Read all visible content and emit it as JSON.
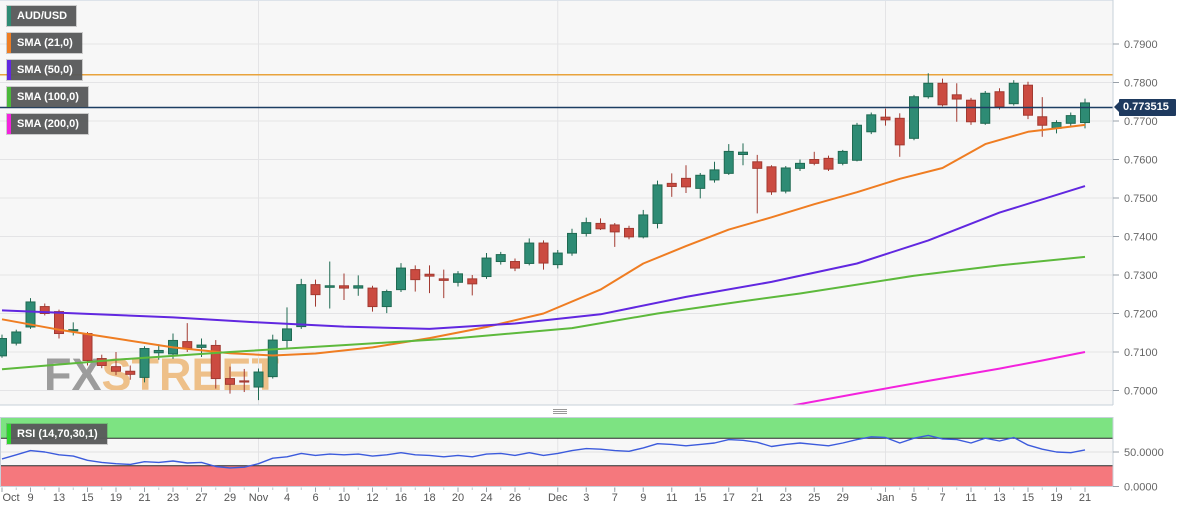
{
  "instrument": "AUD/USD",
  "legend": {
    "items": [
      {
        "label": "AUD/USD",
        "color": "#2e8b74"
      },
      {
        "label": "SMA (21,0)",
        "color": "#ef7d22"
      },
      {
        "label": "SMA (50,0)",
        "color": "#6127e0"
      },
      {
        "label": "SMA (100,0)",
        "color": "#4bb93a"
      },
      {
        "label": "SMA (200,0)",
        "color": "#f322dd"
      }
    ]
  },
  "rsi_panel": {
    "label": "RSI (14,70,30,1)",
    "chip_color": "#2fd32f",
    "axis_ticks": [
      "50.0000",
      "0.0000"
    ],
    "overbought": 70,
    "oversold": 30,
    "upper_band_color": "#7de382",
    "lower_band_color": "#f5787d",
    "line_color": "#3c5bdc"
  },
  "watermark": {
    "part1": "FX",
    "part2": "STREET",
    "color1": "#9c9c9c",
    "color2": "#eec089"
  },
  "price_axis": {
    "labels": [
      "0.7900",
      "0.7800",
      "0.7700",
      "0.7600",
      "0.7500",
      "0.7400",
      "0.7300",
      "0.7200",
      "0.7100",
      "0.7000"
    ],
    "values": [
      0.79,
      0.78,
      0.77,
      0.76,
      0.75,
      0.74,
      0.73,
      0.72,
      0.71,
      0.7
    ]
  },
  "current_price": {
    "label": "0.773515",
    "value": 0.773515,
    "badge_bg": "#1e3a5f",
    "line_color": "#1d3e63"
  },
  "level_line": {
    "value": 0.782,
    "color": "#e8a33c"
  },
  "chart_data": {
    "type": "candlestick",
    "title": "AUD/USD daily candlestick chart with SMA (21/50/100/200) overlays and RSI (14,70,30,1) sub-panel",
    "up_color": "#2e8b74",
    "up_stroke": "#1f6a52",
    "down_color": "#cb4b41",
    "down_stroke": "#a23a31",
    "ylim_main": [
      0.6962,
      0.8014
    ],
    "rsi_ylim": [
      0,
      100
    ],
    "dates": [
      "Oct 7",
      "Oct 8",
      "Oct 9",
      "Oct 12",
      "Oct 13",
      "Oct 14",
      "Oct 15",
      "Oct 16",
      "Oct 19",
      "Oct 20",
      "Oct 21",
      "Oct 22",
      "Oct 23",
      "Oct 26",
      "Oct 27",
      "Oct 28",
      "Oct 29",
      "Oct 30",
      "Nov 2",
      "Nov 3",
      "Nov 4",
      "Nov 5",
      "Nov 6",
      "Nov 9",
      "Nov 10",
      "Nov 11",
      "Nov 12",
      "Nov 13",
      "Nov 16",
      "Nov 17",
      "Nov 18",
      "Nov 19",
      "Nov 20",
      "Nov 23",
      "Nov 24",
      "Nov 25",
      "Nov 26",
      "Nov 27",
      "Nov 30",
      "Dec 1",
      "Dec 2",
      "Dec 3",
      "Dec 4",
      "Dec 7",
      "Dec 8",
      "Dec 9",
      "Dec 10",
      "Dec 11",
      "Dec 14",
      "Dec 15",
      "Dec 16",
      "Dec 17",
      "Dec 18",
      "Dec 21",
      "Dec 22",
      "Dec 23",
      "Dec 24",
      "Dec 25",
      "Dec 28",
      "Dec 29",
      "Dec 30",
      "Dec 31",
      "Jan 1",
      "Jan 4",
      "Jan 5",
      "Jan 6",
      "Jan 7",
      "Jan 8",
      "Jan 11",
      "Jan 12",
      "Jan 13",
      "Jan 14",
      "Jan 15",
      "Jan 18",
      "Jan 19",
      "Jan 20",
      "Jan 21"
    ],
    "ohlc": [
      [
        0.709,
        0.7145,
        0.7085,
        0.7135
      ],
      [
        0.7123,
        0.7158,
        0.7117,
        0.7152
      ],
      [
        0.7165,
        0.724,
        0.716,
        0.723
      ],
      [
        0.7218,
        0.7226,
        0.7195,
        0.72
      ],
      [
        0.7205,
        0.721,
        0.7135,
        0.7148
      ],
      [
        0.7155,
        0.7177,
        0.7143,
        0.7158
      ],
      [
        0.7148,
        0.7152,
        0.7065,
        0.7078
      ],
      [
        0.7083,
        0.7093,
        0.7058,
        0.7065
      ],
      [
        0.7062,
        0.71,
        0.704,
        0.705
      ],
      [
        0.705,
        0.7065,
        0.7028,
        0.7042
      ],
      [
        0.7034,
        0.7115,
        0.7021,
        0.7109
      ],
      [
        0.7098,
        0.712,
        0.708,
        0.7104
      ],
      [
        0.7095,
        0.7148,
        0.7082,
        0.713
      ],
      [
        0.7127,
        0.7175,
        0.71,
        0.711
      ],
      [
        0.7112,
        0.7135,
        0.7087,
        0.7118
      ],
      [
        0.7117,
        0.7131,
        0.7005,
        0.7031
      ],
      [
        0.7031,
        0.7062,
        0.6992,
        0.7016
      ],
      [
        0.7025,
        0.7056,
        0.6996,
        0.7022
      ],
      [
        0.7009,
        0.7057,
        0.6975,
        0.7048
      ],
      [
        0.7036,
        0.7145,
        0.7031,
        0.7131
      ],
      [
        0.713,
        0.7216,
        0.7108,
        0.716
      ],
      [
        0.7166,
        0.729,
        0.716,
        0.7275
      ],
      [
        0.7275,
        0.7288,
        0.7218,
        0.7249
      ],
      [
        0.7268,
        0.7335,
        0.7213,
        0.7272
      ],
      [
        0.7272,
        0.7304,
        0.7235,
        0.7266
      ],
      [
        0.7266,
        0.7299,
        0.7246,
        0.7272
      ],
      [
        0.7266,
        0.7272,
        0.7205,
        0.7218
      ],
      [
        0.7218,
        0.7262,
        0.7201,
        0.7257
      ],
      [
        0.7262,
        0.7331,
        0.7256,
        0.7318
      ],
      [
        0.7314,
        0.7325,
        0.7257,
        0.7288
      ],
      [
        0.7302,
        0.7325,
        0.7253,
        0.7297
      ],
      [
        0.729,
        0.7314,
        0.724,
        0.7286
      ],
      [
        0.7281,
        0.731,
        0.727,
        0.7303
      ],
      [
        0.729,
        0.73,
        0.7247,
        0.7277
      ],
      [
        0.7296,
        0.7357,
        0.729,
        0.7344
      ],
      [
        0.7335,
        0.736,
        0.7327,
        0.7353
      ],
      [
        0.7335,
        0.7343,
        0.731,
        0.7318
      ],
      [
        0.733,
        0.7395,
        0.7325,
        0.7383
      ],
      [
        0.7383,
        0.739,
        0.7314,
        0.7331
      ],
      [
        0.7327,
        0.7365,
        0.7317,
        0.7357
      ],
      [
        0.7357,
        0.742,
        0.735,
        0.7408
      ],
      [
        0.7408,
        0.7449,
        0.74,
        0.7436
      ],
      [
        0.7434,
        0.7447,
        0.7417,
        0.742
      ],
      [
        0.743,
        0.7435,
        0.7373,
        0.7412
      ],
      [
        0.7421,
        0.7428,
        0.7393,
        0.7399
      ],
      [
        0.7399,
        0.7469,
        0.7395,
        0.7456
      ],
      [
        0.7434,
        0.7545,
        0.7421,
        0.7534
      ],
      [
        0.7538,
        0.7564,
        0.7503,
        0.753
      ],
      [
        0.7551,
        0.7585,
        0.7513,
        0.7529
      ],
      [
        0.7525,
        0.7565,
        0.7499,
        0.7559
      ],
      [
        0.7547,
        0.7594,
        0.754,
        0.7573
      ],
      [
        0.7564,
        0.764,
        0.756,
        0.7621
      ],
      [
        0.7613,
        0.7642,
        0.7585,
        0.7619
      ],
      [
        0.7594,
        0.7612,
        0.746,
        0.7577
      ],
      [
        0.7581,
        0.7585,
        0.7508,
        0.7516
      ],
      [
        0.7518,
        0.7583,
        0.7512,
        0.7578
      ],
      [
        0.7577,
        0.76,
        0.757,
        0.759
      ],
      [
        0.76,
        0.762,
        0.7585,
        0.759
      ],
      [
        0.7603,
        0.761,
        0.757,
        0.7575
      ],
      [
        0.759,
        0.7625,
        0.7585,
        0.7621
      ],
      [
        0.7598,
        0.7695,
        0.7595,
        0.7689
      ],
      [
        0.7672,
        0.7722,
        0.7666,
        0.7716
      ],
      [
        0.771,
        0.7732,
        0.7688,
        0.7703
      ],
      [
        0.7707,
        0.772,
        0.7607,
        0.7638
      ],
      [
        0.7655,
        0.7768,
        0.765,
        0.7763
      ],
      [
        0.7763,
        0.7824,
        0.7758,
        0.7798
      ],
      [
        0.7798,
        0.781,
        0.7738,
        0.7742
      ],
      [
        0.7768,
        0.7798,
        0.7698,
        0.7757
      ],
      [
        0.7754,
        0.776,
        0.769,
        0.7698
      ],
      [
        0.7694,
        0.7778,
        0.769,
        0.7772
      ],
      [
        0.7776,
        0.7785,
        0.773,
        0.7737
      ],
      [
        0.7745,
        0.7806,
        0.774,
        0.7798
      ],
      [
        0.7793,
        0.7802,
        0.7705,
        0.7715
      ],
      [
        0.7711,
        0.7762,
        0.7659,
        0.7689
      ],
      [
        0.7681,
        0.7702,
        0.7668,
        0.7696
      ],
      [
        0.7694,
        0.7722,
        0.7686,
        0.7714
      ],
      [
        0.7696,
        0.7758,
        0.7681,
        0.7747
      ]
    ],
    "rsi": [
      40,
      46,
      52,
      50,
      46,
      44,
      38,
      35,
      33,
      32,
      36,
      35,
      37,
      34,
      35,
      29,
      27,
      28,
      33,
      41,
      43,
      48,
      45,
      47,
      46,
      47,
      44,
      46,
      49,
      46,
      45,
      43,
      45,
      43,
      47,
      48,
      45,
      49,
      45,
      48,
      52,
      55,
      54,
      52,
      51,
      56,
      62,
      61,
      59,
      61,
      63,
      68,
      67,
      64,
      58,
      61,
      63,
      61,
      59,
      63,
      68,
      72,
      71,
      63,
      70,
      74,
      69,
      68,
      63,
      70,
      66,
      71,
      60,
      54,
      50,
      49,
      53
    ],
    "sma21": [
      [
        0,
        0.7185
      ],
      [
        4,
        0.7158
      ],
      [
        8,
        0.7135
      ],
      [
        12,
        0.7112
      ],
      [
        16,
        0.7097
      ],
      [
        19,
        0.7091
      ],
      [
        22,
        0.7096
      ],
      [
        26,
        0.7112
      ],
      [
        30,
        0.7136
      ],
      [
        34,
        0.7165
      ],
      [
        38,
        0.72
      ],
      [
        42,
        0.7262
      ],
      [
        45,
        0.733
      ],
      [
        48,
        0.7375
      ],
      [
        51,
        0.7418
      ],
      [
        54,
        0.745
      ],
      [
        57,
        0.7484
      ],
      [
        60,
        0.7515
      ],
      [
        63,
        0.755
      ],
      [
        66,
        0.7578
      ],
      [
        69,
        0.764
      ],
      [
        72,
        0.7672
      ],
      [
        76,
        0.769
      ]
    ],
    "sma50": [
      [
        0,
        0.7208
      ],
      [
        6,
        0.7199
      ],
      [
        12,
        0.719
      ],
      [
        18,
        0.7177
      ],
      [
        24,
        0.7166
      ],
      [
        30,
        0.716
      ],
      [
        36,
        0.7174
      ],
      [
        42,
        0.7198
      ],
      [
        48,
        0.7243
      ],
      [
        54,
        0.7282
      ],
      [
        60,
        0.733
      ],
      [
        65,
        0.739
      ],
      [
        70,
        0.7462
      ],
      [
        76,
        0.7531
      ]
    ],
    "sma100": [
      [
        0,
        0.7055
      ],
      [
        8,
        0.708
      ],
      [
        16,
        0.71
      ],
      [
        24,
        0.7118
      ],
      [
        32,
        0.7136
      ],
      [
        40,
        0.7162
      ],
      [
        46,
        0.72
      ],
      [
        52,
        0.7232
      ],
      [
        56,
        0.7252
      ],
      [
        64,
        0.7298
      ],
      [
        70,
        0.7325
      ],
      [
        76,
        0.7347
      ]
    ],
    "sma200": [
      [
        55,
        0.6958
      ],
      [
        60,
        0.6992
      ],
      [
        65,
        0.7025
      ],
      [
        70,
        0.7057
      ],
      [
        73,
        0.7078
      ],
      [
        76,
        0.71
      ]
    ],
    "x_tick_labels": [
      [
        "Oct",
        0
      ],
      [
        "9",
        2
      ],
      [
        "13",
        4
      ],
      [
        "15",
        6
      ],
      [
        "19",
        8
      ],
      [
        "21",
        10
      ],
      [
        "23",
        12
      ],
      [
        "27",
        14
      ],
      [
        "29",
        16
      ],
      [
        "Nov",
        18
      ],
      [
        "4",
        20
      ],
      [
        "6",
        22
      ],
      [
        "10",
        24
      ],
      [
        "12",
        26
      ],
      [
        "16",
        28
      ],
      [
        "18",
        30
      ],
      [
        "20",
        32
      ],
      [
        "24",
        34
      ],
      [
        "26",
        36
      ],
      [
        "Dec",
        39
      ],
      [
        "3",
        41
      ],
      [
        "7",
        43
      ],
      [
        "9",
        45
      ],
      [
        "11",
        47
      ],
      [
        "15",
        49
      ],
      [
        "17",
        51
      ],
      [
        "21",
        53
      ],
      [
        "23",
        55
      ],
      [
        "25",
        57
      ],
      [
        "29",
        59
      ],
      [
        "Jan",
        62
      ],
      [
        "5",
        64
      ],
      [
        "7",
        66
      ],
      [
        "11",
        68
      ],
      [
        "13",
        70
      ],
      [
        "15",
        72
      ],
      [
        "19",
        74
      ],
      [
        "21",
        76
      ]
    ],
    "month_gridline_idx": [
      18,
      39,
      62
    ],
    "legend_position": "top-left",
    "grid": true
  }
}
